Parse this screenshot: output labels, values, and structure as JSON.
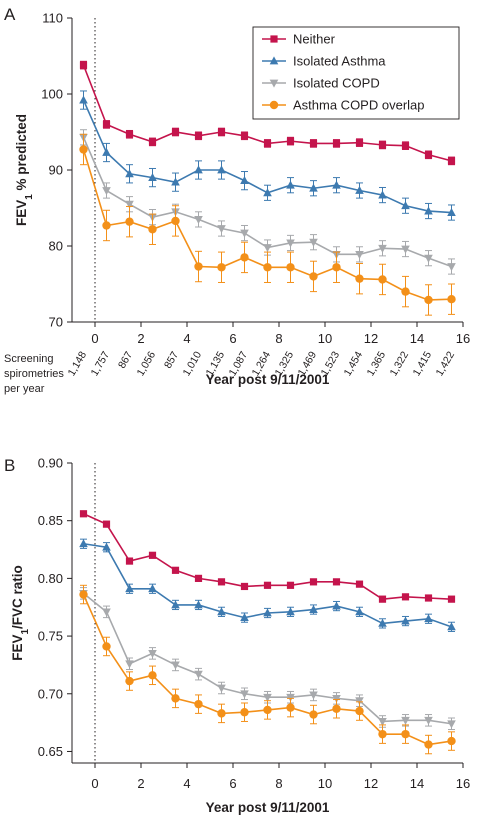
{
  "figure": {
    "panels": [
      {
        "letter": "A",
        "ylabel_main": "FEV",
        "ylabel_sub": "1",
        "ylabel_rest": " % predicted",
        "xlabel": "Year post 9/11/2001",
        "screening_label_lines": [
          "Screening",
          "spirometries",
          "per year"
        ],
        "screening_counts": [
          "1,148",
          "1,757",
          "867",
          "1,056",
          "857",
          "1,010",
          "1,135",
          "1,087",
          "1,264",
          "1,325",
          "1,469",
          "1,523",
          "1,454",
          "1,365",
          "1,322",
          "1,415",
          "1,422"
        ]
      },
      {
        "letter": "B",
        "ylabel_main": "FEV",
        "ylabel_sub": "1",
        "ylabel_rest": "/FVC ratio",
        "xlabel": "Year post 9/11/2001"
      }
    ]
  },
  "chart_data": [
    {
      "type": "line",
      "panel": "A",
      "xlabel": "Year post 9/11/2001",
      "ylabel": "FEV1 % predicted",
      "xlim": [
        -1,
        16
      ],
      "ylim": [
        70,
        110
      ],
      "x_ticks": [
        0,
        2,
        4,
        6,
        8,
        10,
        12,
        14,
        16
      ],
      "y_ticks": [
        70,
        80,
        90,
        100,
        110
      ],
      "tick_labels_x": [
        "0",
        "2",
        "4",
        "6",
        "8",
        "10",
        "12",
        "14",
        "16"
      ],
      "tick_labels_y": [
        "70",
        "80",
        "90",
        "100",
        "110"
      ],
      "x": [
        -0.5,
        0.5,
        1.5,
        2.5,
        3.5,
        4.5,
        5.5,
        6.5,
        7.5,
        8.5,
        9.5,
        10.5,
        11.5,
        12.5,
        13.5,
        14.5,
        15.5
      ],
      "reference_line_x": 0,
      "legend_position": "top-right",
      "series": [
        {
          "name": "Neither",
          "color": "#c4144c",
          "marker": "square",
          "values": [
            103.8,
            96.0,
            94.7,
            93.7,
            95.0,
            94.5,
            95.0,
            94.5,
            93.5,
            93.8,
            93.5,
            93.5,
            93.6,
            93.3,
            93.2,
            92.0,
            91.2
          ],
          "error": [
            0.5,
            0.5,
            0.5,
            0.5,
            0.5,
            0.5,
            0.5,
            0.5,
            0.5,
            0.5,
            0.5,
            0.5,
            0.5,
            0.5,
            0.5,
            0.5,
            0.5
          ]
        },
        {
          "name": "Isolated Asthma",
          "color": "#3d7ab0",
          "marker": "triangle-up",
          "values": [
            99.2,
            92.3,
            89.5,
            89.0,
            88.4,
            90.0,
            90.0,
            88.6,
            87.0,
            88.0,
            87.6,
            88.0,
            87.3,
            86.7,
            85.3,
            84.6,
            84.4
          ],
          "error": [
            1.2,
            1.2,
            1.2,
            1.2,
            1.2,
            1.2,
            1.2,
            1.2,
            1.0,
            1.0,
            1.0,
            1.0,
            1.0,
            1.0,
            1.0,
            1.0,
            1.0
          ]
        },
        {
          "name": "Isolated COPD",
          "color": "#a7a9ac",
          "marker": "triangle-down",
          "values": [
            94.3,
            87.3,
            85.5,
            83.8,
            84.5,
            83.5,
            82.3,
            81.7,
            79.8,
            80.4,
            80.5,
            78.9,
            78.9,
            79.7,
            79.6,
            78.4,
            77.3
          ],
          "error": [
            1.0,
            1.0,
            1.0,
            1.0,
            1.0,
            1.0,
            1.0,
            1.0,
            1.0,
            1.0,
            1.0,
            1.0,
            1.0,
            1.0,
            1.0,
            1.0,
            1.0
          ]
        },
        {
          "name": "Asthma COPD overlap",
          "color": "#f39019",
          "marker": "circle",
          "values": [
            92.7,
            82.7,
            83.2,
            82.2,
            83.3,
            77.3,
            77.2,
            78.5,
            77.2,
            77.2,
            76.0,
            77.2,
            75.7,
            75.6,
            74.0,
            72.9,
            73.0
          ],
          "error": [
            2.0,
            2.0,
            2.0,
            2.0,
            2.0,
            2.0,
            2.0,
            2.0,
            2.0,
            2.0,
            2.0,
            2.0,
            2.0,
            2.0,
            2.0,
            2.0,
            2.0
          ]
        }
      ]
    },
    {
      "type": "line",
      "panel": "B",
      "xlabel": "Year post 9/11/2001",
      "ylabel": "FEV1/FVC ratio",
      "xlim": [
        -1,
        16
      ],
      "ylim": [
        0.64,
        0.9
      ],
      "x_ticks": [
        0,
        2,
        4,
        6,
        8,
        10,
        12,
        14,
        16
      ],
      "y_ticks": [
        0.65,
        0.7,
        0.75,
        0.8,
        0.85,
        0.9
      ],
      "tick_labels_x": [
        "0",
        "2",
        "4",
        "6",
        "8",
        "10",
        "12",
        "14",
        "16"
      ],
      "tick_labels_y": [
        "0.65",
        "0.70",
        "0.75",
        "0.80",
        "0.85",
        "0.90"
      ],
      "x": [
        -0.5,
        0.5,
        1.5,
        2.5,
        3.5,
        4.5,
        5.5,
        6.5,
        7.5,
        8.5,
        9.5,
        10.5,
        11.5,
        12.5,
        13.5,
        14.5,
        15.5
      ],
      "reference_line_x": 0,
      "series": [
        {
          "name": "Neither",
          "color": "#c4144c",
          "marker": "square",
          "values": [
            0.856,
            0.847,
            0.815,
            0.82,
            0.807,
            0.8,
            0.797,
            0.793,
            0.794,
            0.794,
            0.797,
            0.797,
            0.795,
            0.782,
            0.784,
            0.783,
            0.782
          ],
          "error": [
            0.002,
            0.002,
            0.002,
            0.002,
            0.002,
            0.002,
            0.002,
            0.002,
            0.002,
            0.002,
            0.002,
            0.002,
            0.002,
            0.002,
            0.002,
            0.002,
            0.002
          ]
        },
        {
          "name": "Isolated Asthma",
          "color": "#3d7ab0",
          "marker": "triangle-up",
          "values": [
            0.83,
            0.827,
            0.791,
            0.791,
            0.777,
            0.777,
            0.771,
            0.766,
            0.77,
            0.771,
            0.773,
            0.776,
            0.771,
            0.761,
            0.763,
            0.765,
            0.758
          ],
          "error": [
            0.004,
            0.004,
            0.004,
            0.004,
            0.004,
            0.004,
            0.004,
            0.004,
            0.004,
            0.004,
            0.004,
            0.004,
            0.004,
            0.004,
            0.004,
            0.004,
            0.004
          ]
        },
        {
          "name": "Isolated COPD",
          "color": "#a7a9ac",
          "marker": "triangle-down",
          "values": [
            0.787,
            0.771,
            0.726,
            0.735,
            0.725,
            0.717,
            0.705,
            0.7,
            0.697,
            0.697,
            0.699,
            0.696,
            0.694,
            0.676,
            0.677,
            0.677,
            0.674
          ],
          "error": [
            0.005,
            0.005,
            0.005,
            0.005,
            0.005,
            0.005,
            0.005,
            0.005,
            0.005,
            0.005,
            0.005,
            0.005,
            0.005,
            0.005,
            0.005,
            0.005,
            0.005
          ]
        },
        {
          "name": "Asthma COPD overlap",
          "color": "#f39019",
          "marker": "circle",
          "values": [
            0.786,
            0.741,
            0.711,
            0.716,
            0.696,
            0.691,
            0.683,
            0.684,
            0.686,
            0.688,
            0.682,
            0.687,
            0.685,
            0.665,
            0.665,
            0.656,
            0.659
          ],
          "error": [
            0.008,
            0.008,
            0.008,
            0.008,
            0.008,
            0.008,
            0.008,
            0.008,
            0.008,
            0.008,
            0.008,
            0.008,
            0.008,
            0.008,
            0.008,
            0.008,
            0.008
          ]
        }
      ]
    }
  ]
}
